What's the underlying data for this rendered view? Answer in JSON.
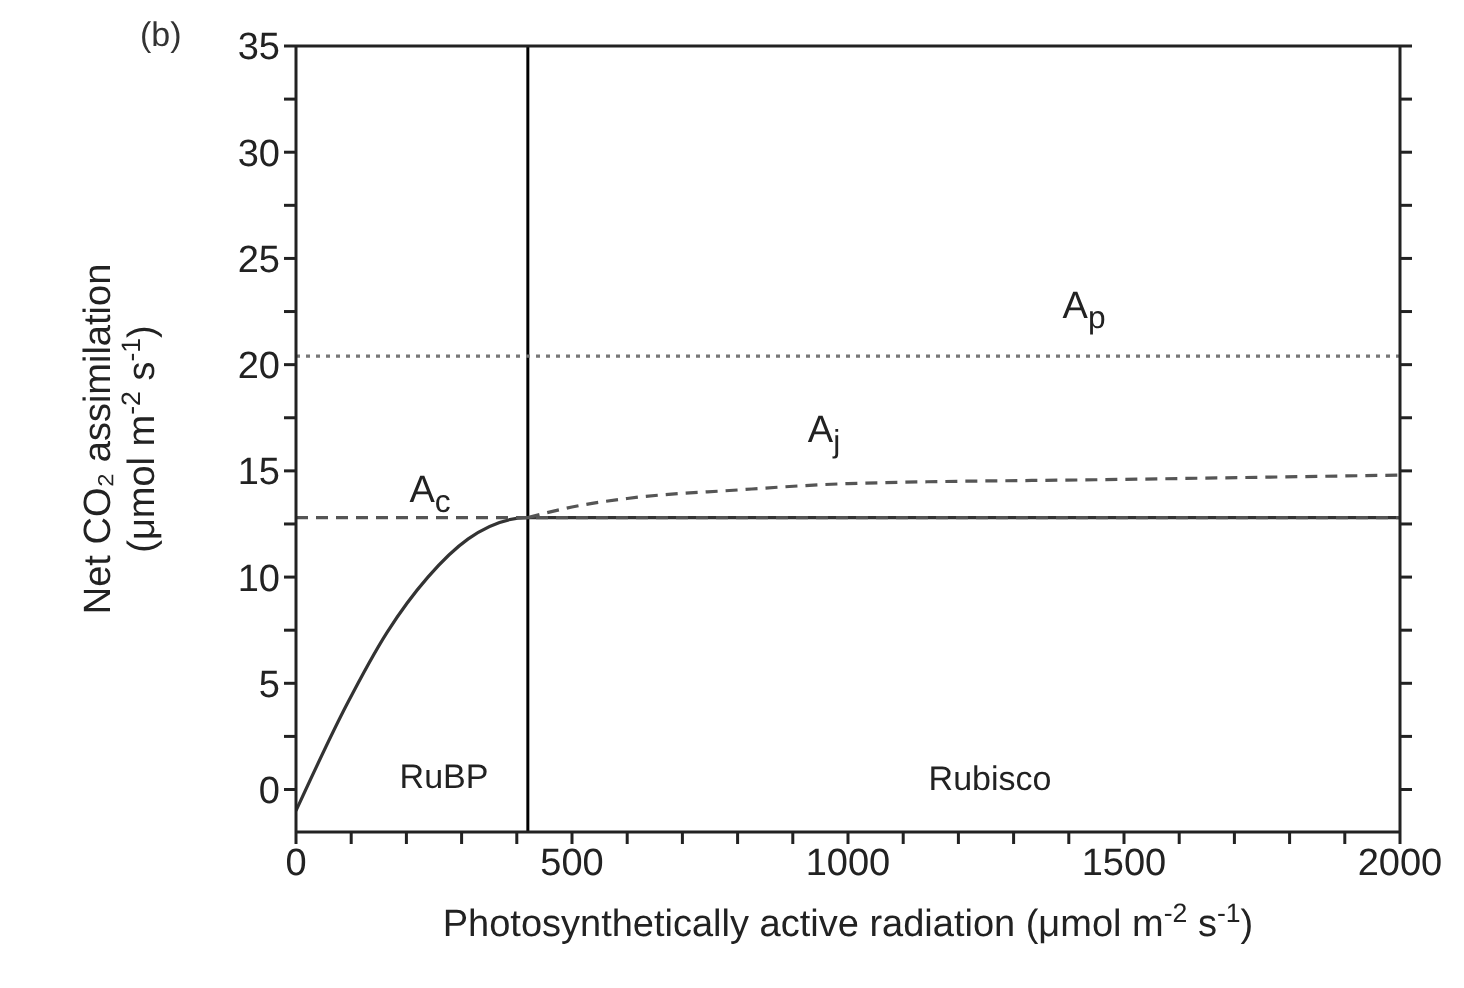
{
  "chart_data": {
    "type": "line",
    "title": "(b)",
    "xlabel": "Photosynthetically active radiation (μmol m$^{-2}$ s$^{-1}$)",
    "ylabel": "Net CO₂ assimilation\n(μmol m$^{-2}$ s$^{-1}$)",
    "series": [
      {
        "color": "#333333",
        "line_style": "solid",
        "x": [
          0,
          92,
          165,
          239,
          312,
          420,
          2000
        ],
        "values": [
          -1,
          4,
          7.4,
          10,
          11.8,
          12.8,
          12.8
        ]
      },
      {
        "name": "A$_{c}$",
        "color": "#555555",
        "line_style": "dashed",
        "x": [
          0,
          2000
        ],
        "values": [
          12.8,
          12.8
        ]
      },
      {
        "name": "A$_{j}$",
        "color": "#555555",
        "line_style": "dashed",
        "x": [
          420,
          500,
          600,
          800,
          1000,
          1500,
          2000
        ],
        "values": [
          12.8,
          13.3,
          13.7,
          14.1,
          14.4,
          14.6,
          14.8
        ]
      },
      {
        "name": "A$_{p}$",
        "color": "#777777",
        "line_style": "dotted",
        "x": [
          0,
          2000
        ],
        "values": [
          20.4,
          20.4
        ]
      }
    ],
    "ref_lines": [
      {
        "axis": "x",
        "value": 420,
        "color": "#000000"
      }
    ],
    "annotations": [
      "RuBP",
      "Rubisco"
    ],
    "xlim": [
      0,
      2000
    ],
    "xticks": [
      0,
      {
        "value": 100,
        "label": null
      },
      {
        "value": 200,
        "label": null
      },
      {
        "value": 300,
        "label": null
      },
      {
        "value": 400,
        "label": null
      },
      500,
      {
        "value": 600,
        "label": null
      },
      {
        "value": 700,
        "label": null
      },
      {
        "value": 800,
        "label": null
      },
      {
        "value": 900,
        "label": null
      },
      1000,
      {
        "value": 1100,
        "label": null
      },
      {
        "value": 1200,
        "label": null
      },
      {
        "value": 1300,
        "label": null
      },
      {
        "value": 1400,
        "label": null
      },
      1500,
      {
        "value": 1600,
        "label": null
      },
      {
        "value": 1700,
        "label": null
      },
      {
        "value": 1800,
        "label": null
      },
      {
        "value": 1900,
        "label": null
      },
      2000
    ],
    "ylim": [
      -2,
      35
    ],
    "yticks": [
      0,
      {
        "value": 2.5,
        "label": null
      },
      5,
      {
        "value": 7.5,
        "label": null
      },
      10,
      {
        "value": 12.5,
        "label": null
      },
      15,
      {
        "value": 17.5,
        "label": null
      },
      20,
      {
        "value": 22.5,
        "label": null
      },
      25,
      {
        "value": 27.5,
        "label": null
      },
      30,
      {
        "value": 32.5,
        "label": null
      },
      35
    ],
    "marker": "none"
  }
}
